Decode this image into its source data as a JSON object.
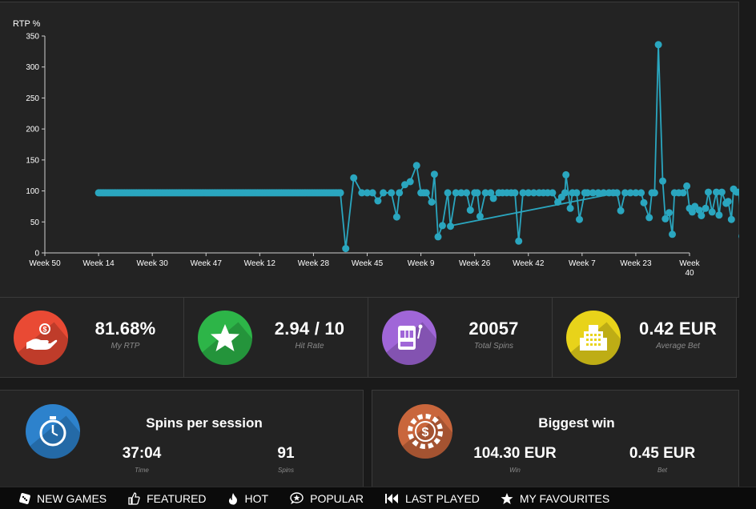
{
  "chart_data": {
    "type": "line",
    "ylabel": "RTP %",
    "ylim": [
      0,
      350
    ],
    "yticks": [
      0,
      50,
      100,
      150,
      200,
      250,
      300,
      350
    ],
    "xticks": [
      "Week 50",
      "Week 14",
      "Week 30",
      "Week 47",
      "Week 12",
      "Week 28",
      "Week 45",
      "Week 9",
      "Week 26",
      "Week 42",
      "Week 7",
      "Week 23",
      "Week 40"
    ],
    "grid": false,
    "color": "#2aa6bf",
    "flat_run": {
      "from_tick": 1,
      "to_tick": 5.5,
      "value": 97
    },
    "points": [
      [
        5.5,
        97
      ],
      [
        5.6,
        7
      ],
      [
        5.75,
        121
      ],
      [
        5.9,
        97
      ],
      [
        6.0,
        97
      ],
      [
        6.1,
        97
      ],
      [
        6.2,
        84
      ],
      [
        6.3,
        97
      ],
      [
        6.45,
        97
      ],
      [
        6.55,
        58
      ],
      [
        6.6,
        97
      ],
      [
        6.7,
        110
      ],
      [
        6.8,
        115
      ],
      [
        6.92,
        141
      ],
      [
        7.0,
        97
      ],
      [
        7.05,
        97
      ],
      [
        7.1,
        97
      ],
      [
        7.2,
        82
      ],
      [
        7.25,
        127
      ],
      [
        7.32,
        26
      ],
      [
        7.4,
        44
      ],
      [
        7.5,
        97
      ],
      [
        7.55,
        43
      ],
      [
        7.65,
        97
      ],
      [
        7.75,
        97
      ],
      [
        7.85,
        97
      ],
      [
        7.92,
        69
      ],
      [
        8.0,
        97
      ],
      [
        8.05,
        97
      ],
      [
        8.1,
        59
      ],
      [
        8.2,
        97
      ],
      [
        8.3,
        97
      ],
      [
        8.35,
        88
      ],
      [
        8.45,
        97
      ],
      [
        8.52,
        97
      ],
      [
        8.6,
        97
      ],
      [
        8.68,
        97
      ],
      [
        8.75,
        97
      ],
      [
        8.82,
        19
      ],
      [
        8.9,
        97
      ],
      [
        9.0,
        97
      ],
      [
        9.1,
        97
      ],
      [
        9.2,
        97
      ],
      [
        9.28,
        97
      ],
      [
        9.36,
        97
      ],
      [
        9.45,
        97
      ],
      [
        9.55,
        82
      ],
      [
        9.62,
        90
      ],
      [
        9.68,
        97
      ],
      [
        9.7,
        126
      ],
      [
        9.78,
        72
      ],
      [
        9.82,
        97
      ],
      [
        9.9,
        97
      ],
      [
        9.95,
        54
      ],
      [
        10.05,
        97
      ],
      [
        10.1,
        97
      ],
      [
        10.2,
        97
      ],
      [
        10.3,
        97
      ],
      [
        10.4,
        97
      ],
      [
        10.5,
        97
      ],
      [
        10.58,
        97
      ],
      [
        10.65,
        97
      ],
      [
        10.72,
        68
      ],
      [
        10.8,
        97
      ],
      [
        10.9,
        97
      ],
      [
        11.0,
        97
      ],
      [
        11.1,
        97
      ],
      [
        11.15,
        81
      ],
      [
        11.25,
        57
      ],
      [
        11.3,
        97
      ],
      [
        11.35,
        97
      ],
      [
        11.42,
        336
      ],
      [
        11.5,
        116
      ],
      [
        11.55,
        55
      ],
      [
        11.62,
        65
      ],
      [
        11.68,
        30
      ],
      [
        11.72,
        97
      ],
      [
        11.8,
        97
      ],
      [
        11.88,
        97
      ],
      [
        11.95,
        108
      ],
      [
        12.0,
        72
      ],
      [
        12.05,
        66
      ],
      [
        12.1,
        75
      ],
      [
        12.18,
        69
      ],
      [
        12.22,
        60
      ],
      [
        12.3,
        72
      ],
      [
        12.35,
        98
      ],
      [
        12.42,
        66
      ],
      [
        12.5,
        98
      ],
      [
        12.55,
        61
      ],
      [
        12.6,
        98
      ],
      [
        12.68,
        80
      ],
      [
        12.72,
        83
      ],
      [
        12.78,
        54
      ],
      [
        12.82,
        103
      ],
      [
        12.88,
        98
      ],
      [
        12.92,
        98
      ],
      [
        12.98,
        27
      ],
      [
        13.05,
        98
      ],
      [
        13.15,
        98
      ],
      [
        13.25,
        98
      ],
      [
        13.35,
        98
      ],
      [
        13.45,
        98
      ],
      [
        13.55,
        98
      ],
      [
        13.65,
        98
      ],
      [
        13.75,
        98
      ],
      [
        13.85,
        98
      ],
      [
        13.95,
        98
      ],
      [
        14.05,
        98
      ],
      [
        14.15,
        98
      ],
      [
        14.25,
        147
      ],
      [
        14.3,
        98
      ]
    ]
  },
  "stats": [
    {
      "value": "81.68%",
      "label": "My RTP",
      "color": "#e94a34",
      "icon": "hand-coin-icon"
    },
    {
      "value": "2.94 / 10",
      "label": "Hit Rate",
      "color": "#2db548",
      "icon": "star-icon"
    },
    {
      "value": "20057",
      "label": "Total Spins",
      "color": "#a066d8",
      "icon": "slot-machine-icon"
    },
    {
      "value": "0.42 EUR",
      "label": "Average Bet",
      "color": "#e8d31a",
      "icon": "casino-building-icon"
    }
  ],
  "session": {
    "title": "Spins per session",
    "time_value": "37:04",
    "time_label": "Time",
    "spins_value": "91",
    "spins_label": "Spins",
    "color": "#2d82cc",
    "icon": "stopwatch-icon"
  },
  "biggest": {
    "title": "Biggest win",
    "win_value": "104.30 EUR",
    "win_label": "Win",
    "bet_value": "0.45 EUR",
    "bet_label": "Bet",
    "color": "#c9663c",
    "icon": "casino-chip-icon"
  },
  "nav": [
    {
      "label": "NEW GAMES",
      "icon": "dice-icon"
    },
    {
      "label": "FEATURED",
      "icon": "thumbs-up-icon"
    },
    {
      "label": "HOT",
      "icon": "flame-icon"
    },
    {
      "label": "POPULAR",
      "icon": "speech-star-icon"
    },
    {
      "label": "LAST PLAYED",
      "icon": "rewind-icon"
    },
    {
      "label": "MY FAVOURITES",
      "icon": "star-icon"
    }
  ]
}
